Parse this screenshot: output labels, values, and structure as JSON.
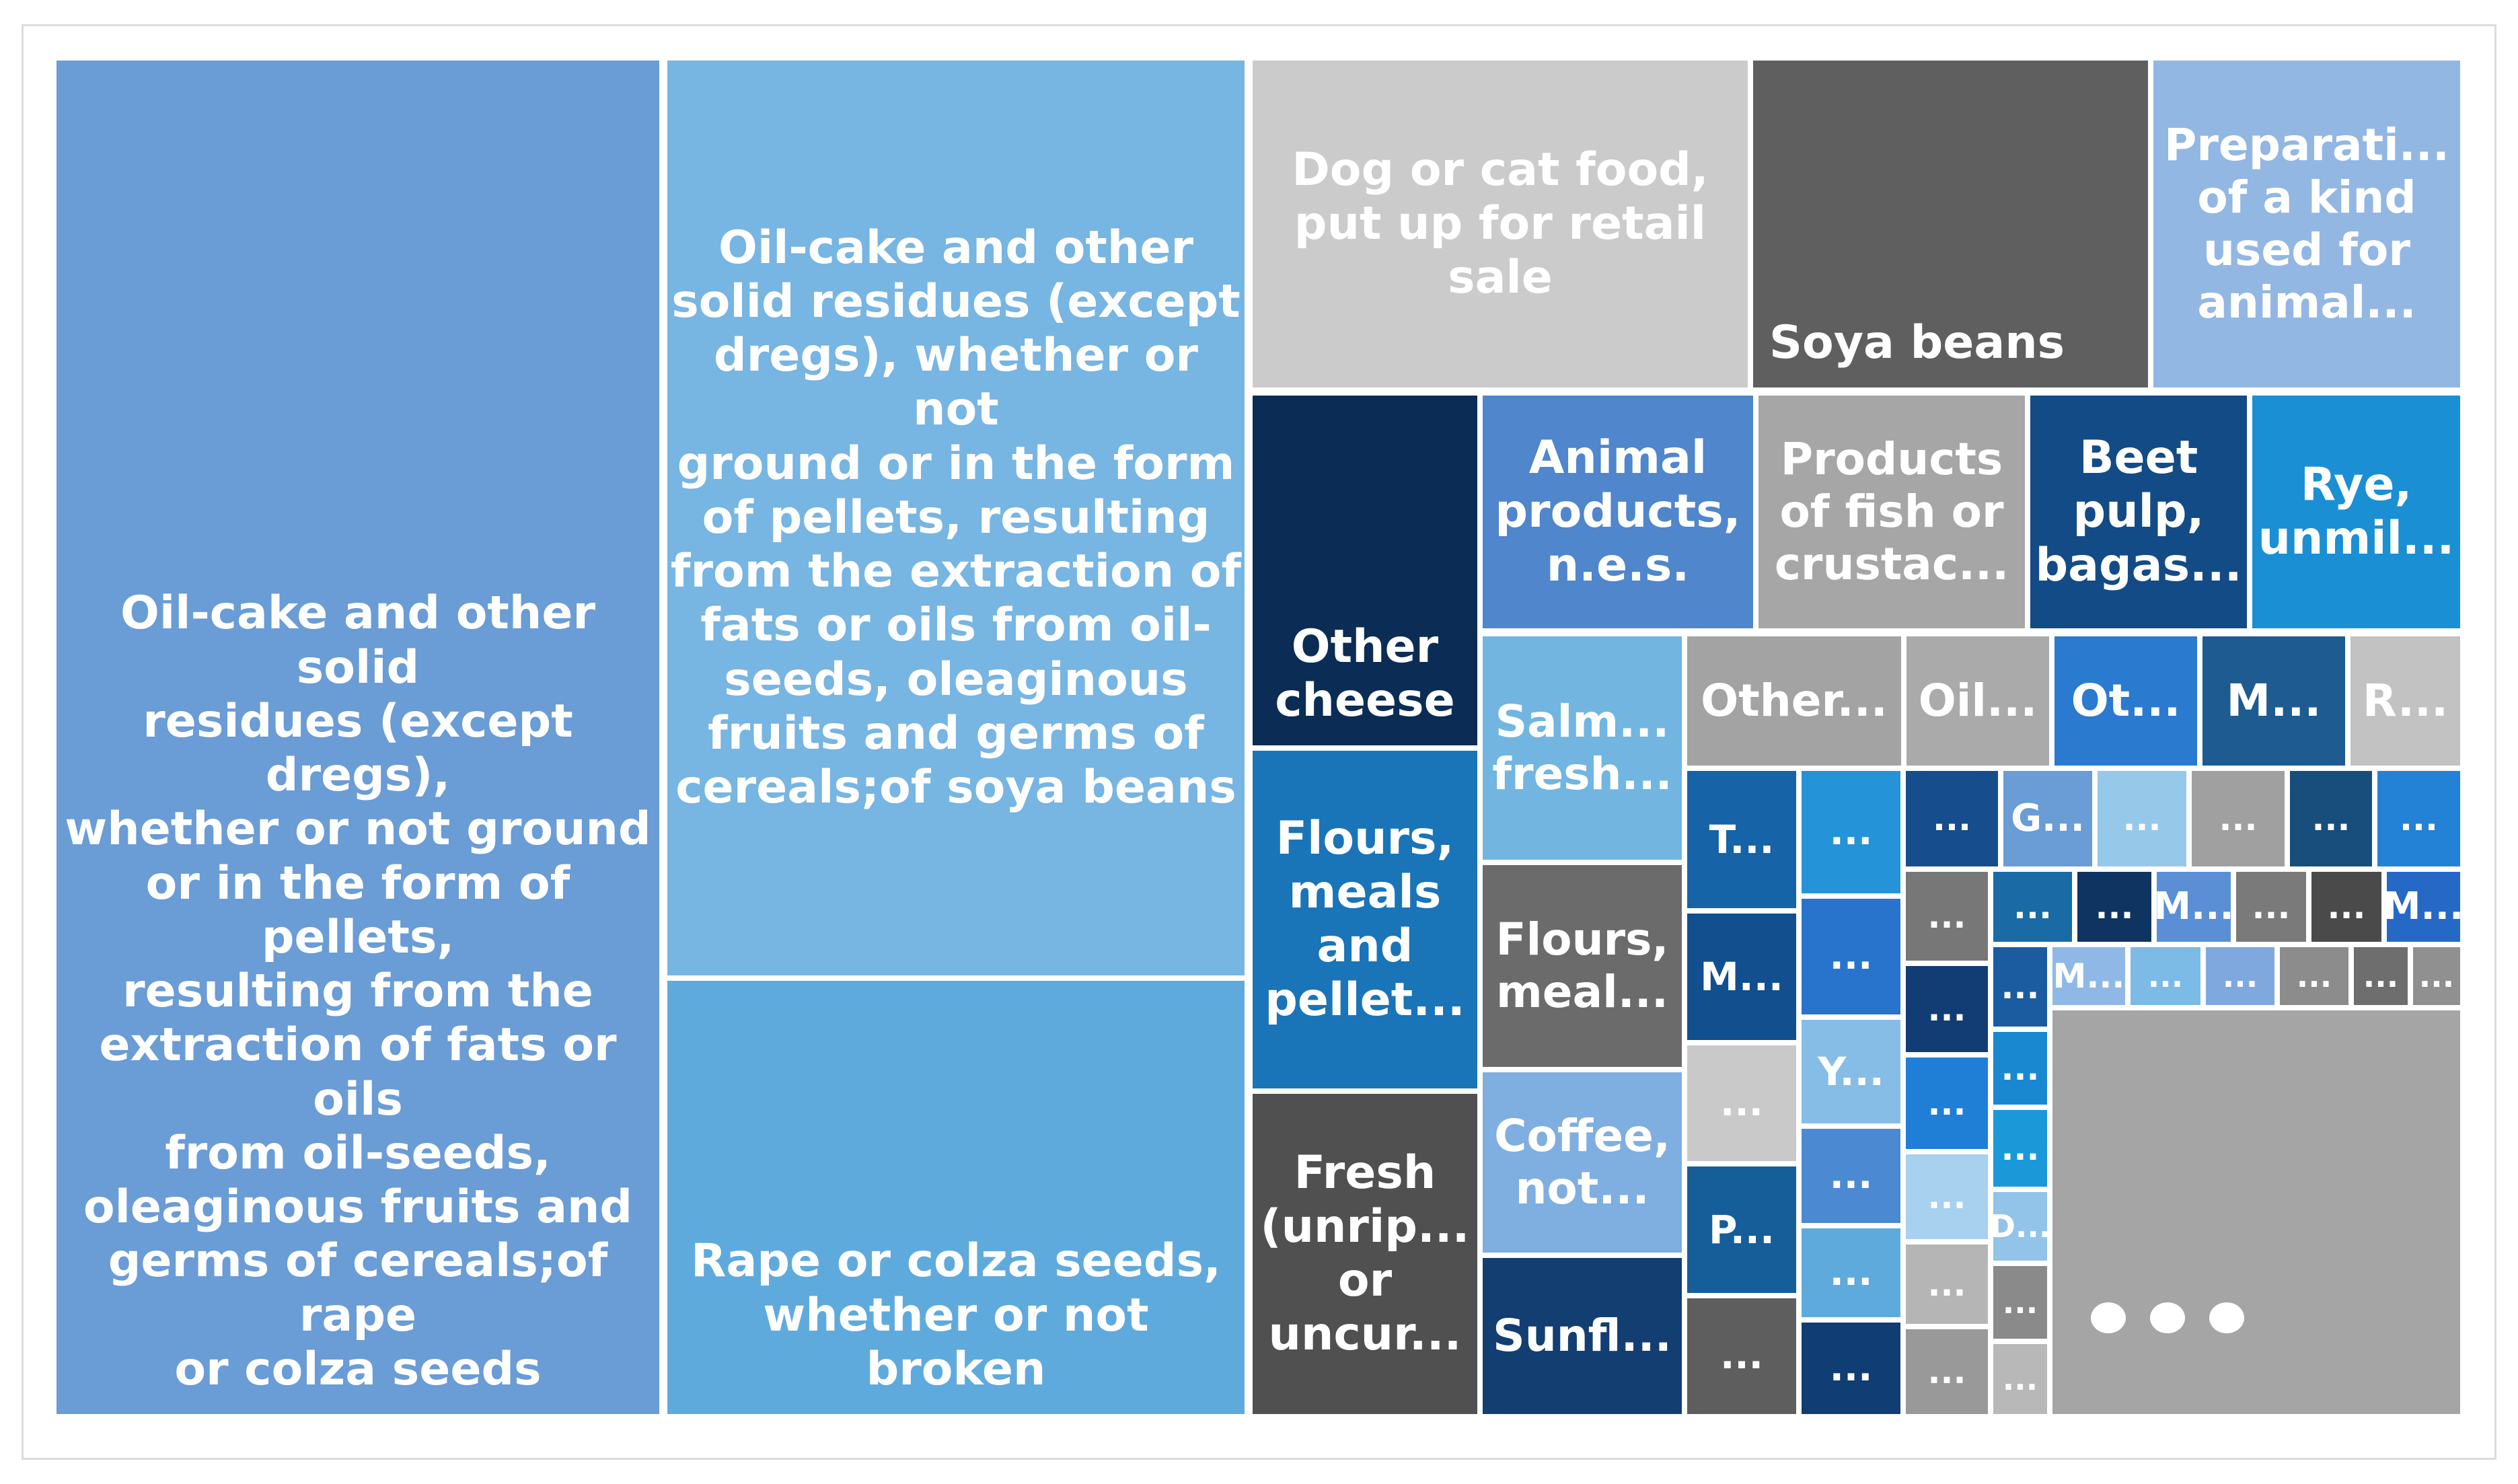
{
  "chart_data": {
    "type": "treemap",
    "tiles": [
      {
        "label": "Oil-cake and other solid\nresidues (except dregs),\nwhether or not ground\nor in the form of pellets,\nresulting from the\nextraction of fats or oils\nfrom oil-seeds,\noleaginous fruits and\ngerms of cereals;of rape\nor colza seeds",
        "color": "#6a9cd6"
      },
      {
        "label": "Oil-cake and other\nsolid residues (except\ndregs), whether or not\nground or in the form\nof pellets, resulting\nfrom the extraction of\nfats or oils from oil-\nseeds, oleaginous\nfruits and germs of\ncereals;of soya beans",
        "color": "#77b5e2"
      },
      {
        "label": "Rape or colza seeds,\nwhether or not broken",
        "color": "#5faadd"
      },
      {
        "label": "Dog or cat food,\nput up for retail\nsale",
        "color": "#cbcbcb"
      },
      {
        "label": "Soya beans",
        "color": "#5f5f5f"
      },
      {
        "label": "Preparati...\nof a kind\nused for\nanimal...",
        "color": "#93b7e3"
      },
      {
        "label": "Other\ncheese",
        "color": "#0b2d55"
      },
      {
        "label": "Animal\nproducts,\nn.e.s.",
        "color": "#4f86cc"
      },
      {
        "label": "Products\nof fish or\ncrustac...",
        "color": "#a6a6a6"
      },
      {
        "label": "Beet\npulp,\nbagas...",
        "color": "#134b86"
      },
      {
        "label": "Rye,\nunmil...",
        "color": "#1a8fd4"
      },
      {
        "label": "Salm...\nfresh...",
        "color": "#72b5e1"
      },
      {
        "label": "Other...",
        "color": "#a3a3a3"
      },
      {
        "label": "Oil...",
        "color": "#aaaaaa"
      },
      {
        "label": "Ot...",
        "color": "#2a7ad0"
      },
      {
        "label": "M...",
        "color": "#1d5b91"
      },
      {
        "label": "R...",
        "color": "#c2c2c2"
      },
      {
        "label": "Flours,\nmeals\nand\npellet...",
        "color": "#1a74b8"
      },
      {
        "label": "Flours,\nmeal...",
        "color": "#6b6b6b"
      },
      {
        "label": "Coffee,\nnot...",
        "color": "#7faee0"
      },
      {
        "label": "Fresh\n(unrip...\nor\nuncur...",
        "color": "#505050"
      },
      {
        "label": "Sunfl...",
        "color": "#123e72"
      },
      {
        "label": "T...",
        "color": "#1663a8"
      },
      {
        "label": "...",
        "color": "#2593d8"
      },
      {
        "label": "M...",
        "color": "#124f8e"
      },
      {
        "label": "...",
        "color": "#2874cd"
      },
      {
        "label": "...",
        "color": "#c9c9c9"
      },
      {
        "label": "Y...",
        "color": "#86bde6"
      },
      {
        "label": "...",
        "color": "#4b89d3"
      },
      {
        "label": "P...",
        "color": "#155e9a"
      },
      {
        "label": "...",
        "color": "#5faadd"
      },
      {
        "label": "...",
        "color": "#5e5e5e"
      },
      {
        "label": "...",
        "color": "#103d73"
      },
      {
        "label": "...",
        "color": "#154d8d"
      },
      {
        "label": "G...",
        "color": "#6a9cd6"
      },
      {
        "label": "...",
        "color": "#96c8ea"
      },
      {
        "label": "...",
        "color": "#a0a0a0"
      },
      {
        "label": "...",
        "color": "#174e7c"
      },
      {
        "label": "...",
        "color": "#2382d6"
      },
      {
        "label": "...",
        "color": "#777777"
      },
      {
        "label": "...",
        "color": "#1a6aa5"
      },
      {
        "label": "...",
        "color": "#0f3462"
      },
      {
        "label": "M...",
        "color": "#5a8fd6"
      },
      {
        "label": "...",
        "color": "#7a7a7a"
      },
      {
        "label": "...",
        "color": "#4a4a4a"
      },
      {
        "label": "M...",
        "color": "#2668c6"
      },
      {
        "label": "...",
        "color": "#1b5ca0"
      },
      {
        "label": "...",
        "color": "#123d74"
      },
      {
        "label": "M...",
        "color": "#8fb8e6"
      },
      {
        "label": "...",
        "color": "#7bbbe6"
      },
      {
        "label": "...",
        "color": "#7fa9de"
      },
      {
        "label": "...",
        "color": "#8c8c8c"
      },
      {
        "label": "...",
        "color": "#6e6e6e"
      },
      {
        "label": "...",
        "color": "#909090"
      },
      {
        "label": "...",
        "color": "#1f7ed6"
      },
      {
        "label": "...",
        "color": "#a8d0ef"
      },
      {
        "label": "...",
        "color": "#b5b5b5"
      },
      {
        "label": "...",
        "color": "#1a88d0"
      },
      {
        "label": "...",
        "color": "#1b98d8"
      },
      {
        "label": "...",
        "color": "#999999"
      },
      {
        "label": "D...",
        "color": "#91c4e8"
      },
      {
        "label": "...",
        "color": "#8a8a8a"
      },
      {
        "label": "...",
        "color": "#b8b8b8"
      },
      {
        "label": "...",
        "color": "#13426f"
      },
      {
        "label": "...",
        "color": "#b0b0b0"
      },
      {
        "label": "",
        "color": "#a5a5a5"
      }
    ],
    "more_indicator": "..."
  }
}
